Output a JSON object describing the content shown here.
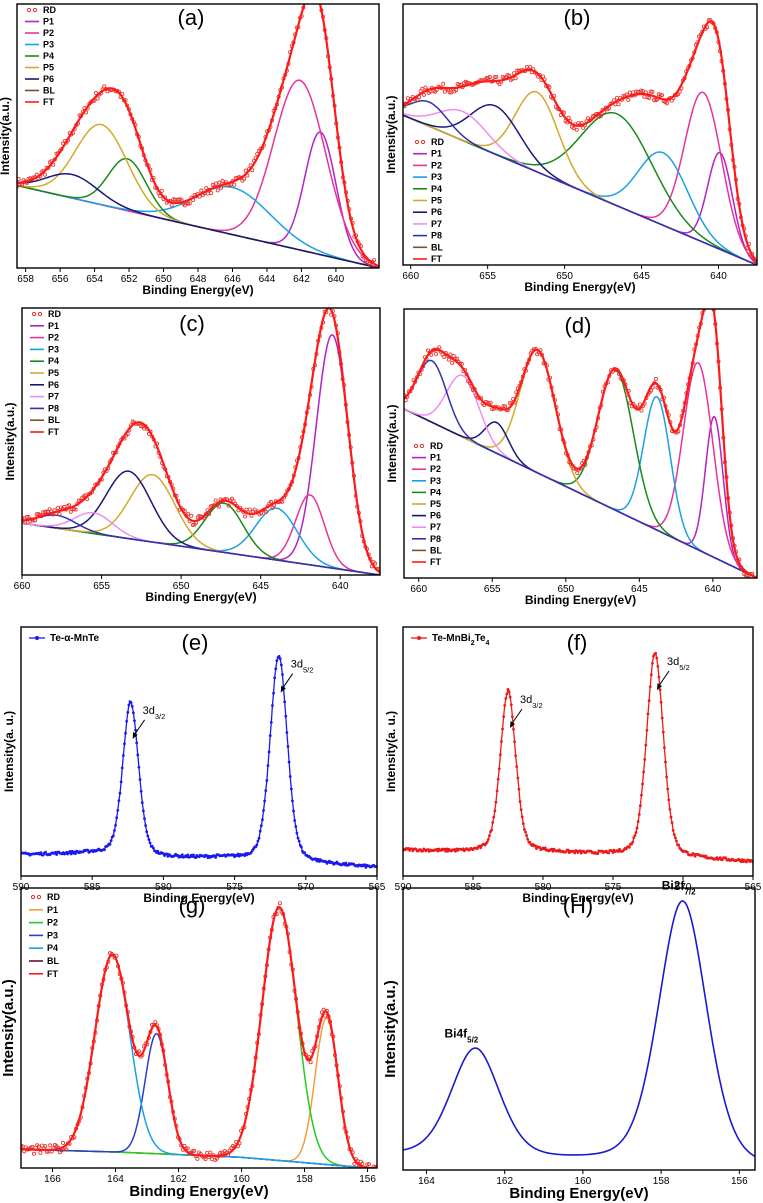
{
  "chart_data": [
    {
      "panel": "(a)",
      "type": "line",
      "x_reversed": true,
      "xlabel": "Binding Energy(eV)",
      "ylabel": "Intensity(a.u.)",
      "xlim": [
        658.5,
        637.5
      ],
      "ylim": [
        0,
        1.12
      ],
      "xticks": [
        658,
        656,
        654,
        652,
        650,
        648,
        646,
        644,
        642,
        640
      ],
      "legend": [
        "RD",
        "P1",
        "P2",
        "P3",
        "P4",
        "P5",
        "P6",
        "BL",
        "FT"
      ],
      "legend_position": "top-left",
      "baseline": {
        "x": [
          658.5,
          637.5
        ],
        "y": [
          0.35,
          0.0
        ]
      },
      "peaks": [
        {
          "name": "P1",
          "color": "#b222c8",
          "center": 640.9,
          "height": 0.52,
          "width": 0.9
        },
        {
          "name": "P2",
          "color": "#e8329c",
          "center": 642.1,
          "height": 0.72,
          "width": 1.5
        },
        {
          "name": "P3",
          "color": "#1aa0e8",
          "center": 646.0,
          "height": 0.2,
          "width": 2.2
        },
        {
          "name": "P4",
          "color": "#178a17",
          "center": 652.1,
          "height": 0.22,
          "width": 1.1
        },
        {
          "name": "P5",
          "color": "#d4a82a",
          "center": 653.6,
          "height": 0.34,
          "width": 1.5
        },
        {
          "name": "P6",
          "color": "#18187a",
          "center": 655.3,
          "height": 0.1,
          "width": 1.5
        }
      ]
    },
    {
      "panel": "(b)",
      "type": "line",
      "x_reversed": true,
      "xlabel": "Binding Energy(eV)",
      "ylabel": "Intensity(a.u.)",
      "xlim": [
        660.5,
        637.5
      ],
      "ylim": [
        0,
        1.08
      ],
      "xticks": [
        660,
        655,
        650,
        645,
        640
      ],
      "legend": [
        "RD",
        "P1",
        "P2",
        "P3",
        "P4",
        "P5",
        "P6",
        "P7",
        "P8",
        "BL",
        "FT"
      ],
      "legend_position": "bottom-left",
      "baseline": {
        "x": [
          660.5,
          637.5
        ],
        "y": [
          0.62,
          0.0
        ]
      },
      "peaks": [
        {
          "name": "P1",
          "color": "#b222c8",
          "center": 639.9,
          "height": 0.4,
          "width": 0.8
        },
        {
          "name": "P2",
          "color": "#e8329c",
          "center": 641.0,
          "height": 0.62,
          "width": 1.2
        },
        {
          "name": "P3",
          "color": "#1aa0e8",
          "center": 643.6,
          "height": 0.3,
          "width": 1.6
        },
        {
          "name": "P4",
          "color": "#178a17",
          "center": 646.6,
          "height": 0.38,
          "width": 2.3
        },
        {
          "name": "P5",
          "color": "#d4a82a",
          "center": 651.8,
          "height": 0.33,
          "width": 1.4
        },
        {
          "name": "P6",
          "color": "#18187a",
          "center": 654.5,
          "height": 0.2,
          "width": 1.6
        },
        {
          "name": "P7",
          "color": "#f08cf0",
          "center": 656.6,
          "height": 0.12,
          "width": 1.6
        },
        {
          "name": "P8",
          "color": "#3030b0",
          "center": 658.8,
          "height": 0.1,
          "width": 1.2
        }
      ]
    },
    {
      "panel": "(c)",
      "type": "line",
      "x_reversed": true,
      "xlabel": "Binding Energy(eV)",
      "ylabel": "Intensity(a.u.)",
      "xlim": [
        660,
        637.5
      ],
      "ylim": [
        0,
        1.03
      ],
      "xticks": [
        660,
        655,
        650,
        645,
        640
      ],
      "legend": [
        "RD",
        "P1",
        "P2",
        "P3",
        "P4",
        "P5",
        "P6",
        "P7",
        "P8",
        "BL",
        "FT"
      ],
      "legend_position": "top-left",
      "baseline": {
        "x": [
          660,
          637.5
        ],
        "y": [
          0.2,
          0.0
        ]
      },
      "peaks": [
        {
          "name": "P1",
          "color": "#b222c8",
          "center": 640.5,
          "height": 0.9,
          "width": 1.0
        },
        {
          "name": "P2",
          "color": "#e8329c",
          "center": 641.9,
          "height": 0.27,
          "width": 0.9
        },
        {
          "name": "P3",
          "color": "#1aa0e8",
          "center": 644.0,
          "height": 0.2,
          "width": 1.3
        },
        {
          "name": "P4",
          "color": "#178a17",
          "center": 647.3,
          "height": 0.19,
          "width": 1.2
        },
        {
          "name": "P5",
          "color": "#d4a82a",
          "center": 651.8,
          "height": 0.26,
          "width": 1.4
        },
        {
          "name": "P6",
          "color": "#18187a",
          "center": 653.3,
          "height": 0.26,
          "width": 1.4
        },
        {
          "name": "P7",
          "color": "#f08cf0",
          "center": 655.5,
          "height": 0.08,
          "width": 1.2
        },
        {
          "name": "P8",
          "color": "#3030b0",
          "center": 657.8,
          "height": 0.05,
          "width": 1.2
        }
      ]
    },
    {
      "panel": "(d)",
      "type": "line",
      "x_reversed": true,
      "xlabel": "Binding Energy(eV)",
      "ylabel": "Intensity(a.u.)",
      "xlim": [
        661,
        637
      ],
      "ylim": [
        0,
        1.05
      ],
      "xticks": [
        660,
        655,
        650,
        645,
        640
      ],
      "legend": [
        "RD",
        "P1",
        "P2",
        "P3",
        "P4",
        "P5",
        "P6",
        "P7",
        "P8",
        "BL",
        "FT"
      ],
      "legend_position": "bottom-left",
      "baseline": {
        "x": [
          661,
          637
        ],
        "y": [
          0.66,
          0.0
        ]
      },
      "peaks": [
        {
          "name": "P1",
          "color": "#b222c8",
          "center": 639.9,
          "height": 0.55,
          "width": 0.6
        },
        {
          "name": "P2",
          "color": "#e8329c",
          "center": 641.0,
          "height": 0.73,
          "width": 1.0
        },
        {
          "name": "P3",
          "color": "#1aa0e8",
          "center": 643.8,
          "height": 0.52,
          "width": 0.9
        },
        {
          "name": "P4",
          "color": "#178a17",
          "center": 646.6,
          "height": 0.55,
          "width": 1.2
        },
        {
          "name": "P5",
          "color": "#d4a82a",
          "center": 651.9,
          "height": 0.48,
          "width": 1.2
        },
        {
          "name": "P6",
          "color": "#18187a",
          "center": 654.7,
          "height": 0.12,
          "width": 0.8
        },
        {
          "name": "P7",
          "color": "#f08cf0",
          "center": 657.0,
          "height": 0.24,
          "width": 1.1
        },
        {
          "name": "P8",
          "color": "#3030b0",
          "center": 659.1,
          "height": 0.24,
          "width": 1.0
        }
      ]
    },
    {
      "panel": "(e)",
      "type": "line",
      "x_reversed": true,
      "xlabel": "Binding Energy(eV)",
      "ylabel": "Intensity(a. u.)",
      "xlim": [
        590,
        565
      ],
      "ylim": [
        0,
        1.05
      ],
      "xticks": [
        590,
        585,
        580,
        575,
        570,
        565
      ],
      "legend_text": "Te-α-MnTe",
      "legend_position": "top-left",
      "series_color": "#1a1aee",
      "background": {
        "x": [
          590,
          585,
          580,
          576,
          572,
          565
        ],
        "y": [
          0.09,
          0.095,
          0.075,
          0.075,
          0.06,
          0.035
        ]
      },
      "peaks": [
        {
          "center": 582.3,
          "height": 0.65,
          "width": 0.55
        },
        {
          "center": 571.9,
          "height": 0.87,
          "width": 0.6
        }
      ],
      "annotations": [
        {
          "base": "3d",
          "sub": "3/2",
          "x": 582.3
        },
        {
          "base": "3d",
          "sub": "5/2",
          "x": 571.9
        }
      ]
    },
    {
      "panel": "(f)",
      "type": "line",
      "x_reversed": true,
      "xlabel": "Binding Energy(eV)",
      "ylabel": "Intensity(a. u.)",
      "xlim": [
        590,
        565
      ],
      "ylim": [
        0,
        1.05
      ],
      "xticks": [
        590,
        585,
        580,
        575,
        570,
        565
      ],
      "legend_parts": [
        "Te-MnBi",
        "2",
        "Te",
        "4"
      ],
      "legend_position": "top-left",
      "series_color": "#ee1a1a",
      "background": {
        "x": [
          590,
          585,
          580,
          576,
          572,
          565
        ],
        "y": [
          0.11,
          0.1,
          0.1,
          0.09,
          0.08,
          0.06
        ]
      },
      "peaks": [
        {
          "center": 582.5,
          "height": 0.68,
          "width": 0.55
        },
        {
          "center": 572.0,
          "height": 0.86,
          "width": 0.6
        }
      ],
      "annotations": [
        {
          "base": "3d",
          "sub": "3/2",
          "x": 582.5
        },
        {
          "base": "3d",
          "sub": "5/2",
          "x": 572.0
        }
      ]
    },
    {
      "panel": "(g)",
      "type": "line",
      "x_reversed": true,
      "xlabel": "Binding Energy(eV)",
      "ylabel": "Intensity(a.u.)",
      "xlim": [
        167,
        155.7
      ],
      "ylim": [
        0,
        1.05
      ],
      "xticks": [
        166,
        164,
        162,
        160,
        158,
        156
      ],
      "legend": [
        "RD",
        "P1",
        "P2",
        "P3",
        "P4",
        "BL",
        "FT"
      ],
      "legend_position": "top-left",
      "baseline": {
        "x": [
          167,
          164,
          160,
          158,
          156,
          155.7
        ],
        "y": [
          0.07,
          0.06,
          0.04,
          0.02,
          0.0,
          0.0
        ]
      },
      "peaks": [
        {
          "name": "P1",
          "color": "#f39c3c",
          "center": 157.3,
          "height": 0.55,
          "width": 0.36
        },
        {
          "name": "P2",
          "color": "#22cc22",
          "center": 158.8,
          "height": 0.95,
          "width": 0.55
        },
        {
          "name": "P3",
          "color": "#2a3ed0",
          "center": 162.7,
          "height": 0.45,
          "width": 0.36
        },
        {
          "name": "P4",
          "color": "#1aa0e8",
          "center": 164.1,
          "height": 0.74,
          "width": 0.55
        }
      ]
    },
    {
      "panel": "(H)",
      "type": "line",
      "x_reversed": true,
      "xlabel": "Binding Energy(eV)",
      "ylabel": "Intensity(a.u.)",
      "xlim": [
        164.6,
        155.6
      ],
      "ylim": [
        0,
        1.03
      ],
      "xticks": [
        164,
        162,
        160,
        158,
        156
      ],
      "series_color": "#1a1ad0",
      "background": {
        "x": [
          164.6,
          155.6
        ],
        "y": [
          0.05,
          0.0
        ]
      },
      "peaks": [
        {
          "center": 162.75,
          "height": 0.4,
          "width": 0.62
        },
        {
          "center": 157.45,
          "height": 0.97,
          "width": 0.62
        }
      ],
      "annotations": [
        {
          "base": "Bi4f",
          "sub": "5/2",
          "x": 162.75
        },
        {
          "base": "Bi2f",
          "sub": "7/2",
          "x": 157.45
        }
      ]
    }
  ]
}
